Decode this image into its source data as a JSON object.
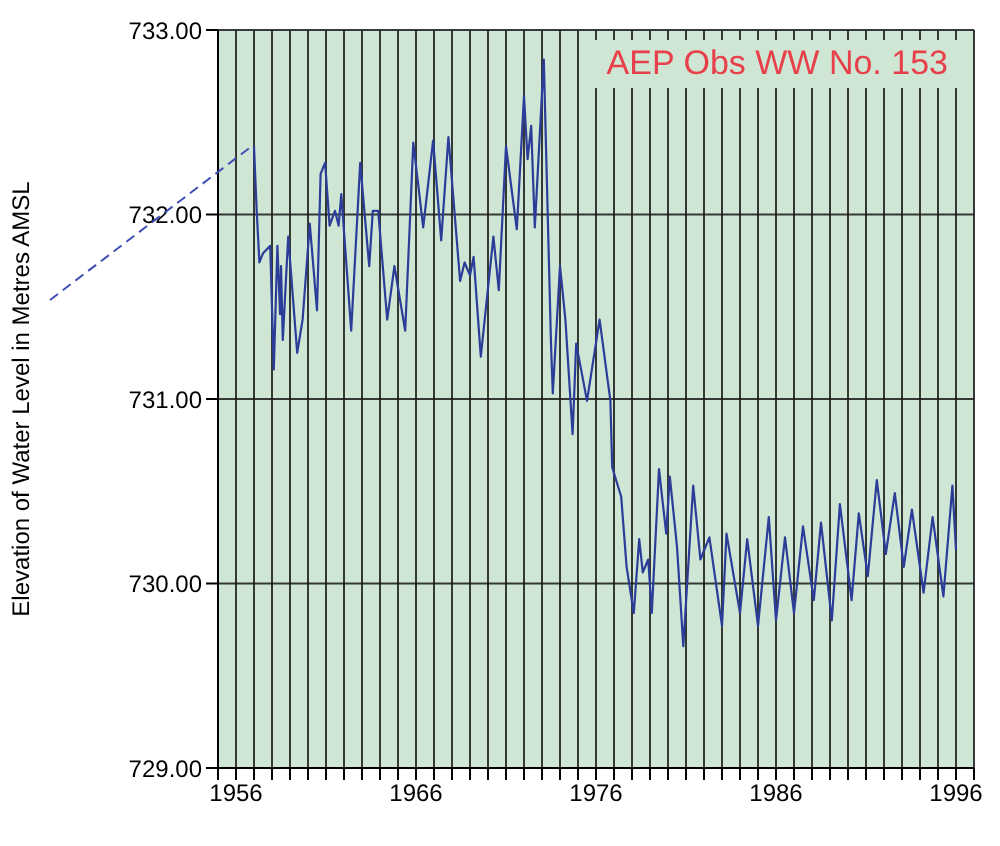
{
  "chart_data": {
    "type": "line",
    "ylabel": "Elevation of Water Level in Metres AMSL",
    "annotations": [
      "AEP Obs WW No. 153"
    ],
    "x": [
      1957.0,
      1957.15,
      1957.3,
      1957.5,
      1957.9,
      1958.1,
      1958.3,
      1958.45,
      1958.5,
      1958.6,
      1958.9,
      1959.4,
      1959.7,
      1960.1,
      1960.5,
      1960.7,
      1960.95,
      1961.2,
      1961.5,
      1961.7,
      1961.85,
      1962.4,
      1962.9,
      1963.4,
      1963.6,
      1963.9,
      1964.4,
      1964.8,
      1965.4,
      1965.85,
      1966.4,
      1966.95,
      1967.4,
      1967.8,
      1968.45,
      1968.7,
      1969.0,
      1969.2,
      1969.6,
      1970.3,
      1970.6,
      1971.0,
      1971.6,
      1972.0,
      1972.2,
      1972.4,
      1972.6,
      1973.1,
      1973.5,
      1973.6,
      1974.0,
      1974.3,
      1974.7,
      1974.9,
      1975.5,
      1976.2,
      1976.8,
      1976.9,
      1977.4,
      1977.7,
      1978.1,
      1978.4,
      1978.6,
      1978.9,
      1979.1,
      1979.5,
      1979.9,
      1980.1,
      1980.5,
      1980.85,
      1981.4,
      1981.8,
      1982.3,
      1983.0,
      1983.25,
      1984.0,
      1984.4,
      1985.0,
      1985.6,
      1986.0,
      1986.5,
      1987.0,
      1987.5,
      1988.1,
      1988.5,
      1989.1,
      1989.55,
      1990.2,
      1990.6,
      1991.1,
      1991.6,
      1992.1,
      1992.6,
      1993.1,
      1993.55,
      1994.2,
      1994.7,
      1995.3,
      1995.8,
      1996.0
    ],
    "series": [
      {
        "color": "#2b3d99",
        "values": [
          732.37,
          732.02,
          731.74,
          731.79,
          731.83,
          731.16,
          731.83,
          731.46,
          731.72,
          731.32,
          731.88,
          731.25,
          731.43,
          731.95,
          731.48,
          732.22,
          732.28,
          731.94,
          732.02,
          731.94,
          732.11,
          731.37,
          732.28,
          731.72,
          732.02,
          732.02,
          731.43,
          731.72,
          731.37,
          732.39,
          731.93,
          732.4,
          731.86,
          732.42,
          731.64,
          731.74,
          731.67,
          731.77,
          731.23,
          731.88,
          731.59,
          732.37,
          731.92,
          732.64,
          732.3,
          732.48,
          731.93,
          732.84,
          731.3,
          731.03,
          731.72,
          731.43,
          730.81,
          731.3,
          730.99,
          731.43,
          730.99,
          730.63,
          730.47,
          730.09,
          729.84,
          730.24,
          730.06,
          730.13,
          729.84,
          730.62,
          730.27,
          730.58,
          730.2,
          729.66,
          730.53,
          730.13,
          730.25,
          729.77,
          730.27,
          729.84,
          730.24,
          729.77,
          730.36,
          729.8,
          730.25,
          729.84,
          730.31,
          729.91,
          730.33,
          729.8,
          730.43,
          729.91,
          730.38,
          730.04,
          730.56,
          730.16,
          730.49,
          730.09,
          730.4,
          729.95,
          730.36,
          729.93,
          730.53,
          730.18
        ]
      }
    ],
    "xlim": [
      1955,
      1997
    ],
    "xticks": [
      {
        "value": 1955,
        "label": null
      },
      1956,
      {
        "value": 1957,
        "label": null
      },
      {
        "value": 1958,
        "label": null
      },
      {
        "value": 1959,
        "label": null
      },
      {
        "value": 1960,
        "label": null
      },
      {
        "value": 1961,
        "label": null
      },
      {
        "value": 1962,
        "label": null
      },
      {
        "value": 1963,
        "label": null
      },
      {
        "value": 1964,
        "label": null
      },
      {
        "value": 1965,
        "label": null
      },
      1966,
      {
        "value": 1967,
        "label": null
      },
      {
        "value": 1968,
        "label": null
      },
      {
        "value": 1969,
        "label": null
      },
      {
        "value": 1970,
        "label": null
      },
      {
        "value": 1971,
        "label": null
      },
      {
        "value": 1972,
        "label": null
      },
      {
        "value": 1973,
        "label": null
      },
      {
        "value": 1974,
        "label": null
      },
      {
        "value": 1975,
        "label": null
      },
      1976,
      {
        "value": 1977,
        "label": null
      },
      {
        "value": 1978,
        "label": null
      },
      {
        "value": 1979,
        "label": null
      },
      {
        "value": 1980,
        "label": null
      },
      {
        "value": 1981,
        "label": null
      },
      {
        "value": 1982,
        "label": null
      },
      {
        "value": 1983,
        "label": null
      },
      {
        "value": 1984,
        "label": null
      },
      {
        "value": 1985,
        "label": null
      },
      1986,
      {
        "value": 1987,
        "label": null
      },
      {
        "value": 1988,
        "label": null
      },
      {
        "value": 1989,
        "label": null
      },
      {
        "value": 1990,
        "label": null
      },
      {
        "value": 1991,
        "label": null
      },
      {
        "value": 1992,
        "label": null
      },
      {
        "value": 1993,
        "label": null
      },
      {
        "value": 1994,
        "label": null
      },
      {
        "value": 1995,
        "label": null
      },
      1996,
      {
        "value": 1997,
        "label": null
      }
    ],
    "ylim": [
      729,
      733
    ],
    "yticks": [
      {
        "value": 729,
        "label": "729.00"
      },
      {
        "value": 730,
        "label": "730.00"
      },
      {
        "value": 731,
        "label": "731.00"
      },
      {
        "value": 732,
        "label": "732.00"
      },
      {
        "value": 733,
        "label": "733.00"
      }
    ],
    "grid": true,
    "legend": false,
    "marker": "none",
    "line_style": "solid"
  }
}
